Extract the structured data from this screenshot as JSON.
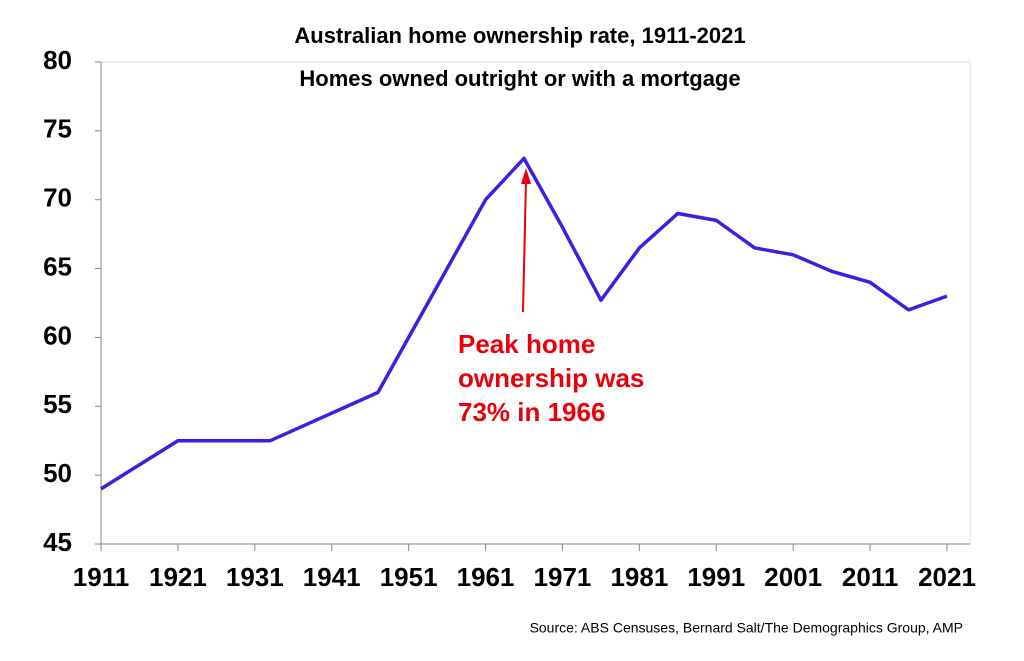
{
  "chart_data": {
    "type": "line",
    "title": "Australian home ownership rate, 1911-2021",
    "subtitle": "Homes owned outright or with a mortgage",
    "x": [
      1911,
      1921,
      1933,
      1947,
      1954,
      1961,
      1966,
      1971,
      1976,
      1981,
      1986,
      1991,
      1996,
      2001,
      2006,
      2011,
      2016,
      2021
    ],
    "series": [
      {
        "color": "#3d1fe3",
        "values": [
          49,
          52.5,
          52.5,
          56,
          63,
          70,
          73,
          68,
          62.7,
          66.5,
          69,
          68.5,
          66.5,
          66,
          64.8,
          64,
          62,
          63
        ]
      }
    ],
    "xlim": [
      1911,
      2021
    ],
    "xticks": [
      1911,
      1921,
      1931,
      1941,
      1951,
      1961,
      1971,
      1981,
      1991,
      2001,
      2011,
      2021
    ],
    "ylim": [
      45,
      80
    ],
    "yticks": [
      45,
      50,
      55,
      60,
      65,
      70,
      75,
      80
    ],
    "annotation": [
      "Peak home",
      "ownership was",
      "73% in 1966"
    ],
    "annotation_color": "#e8000b",
    "source": "Source: ABS Censuses, Bernard Salt/The Demographics Group, AMP"
  }
}
